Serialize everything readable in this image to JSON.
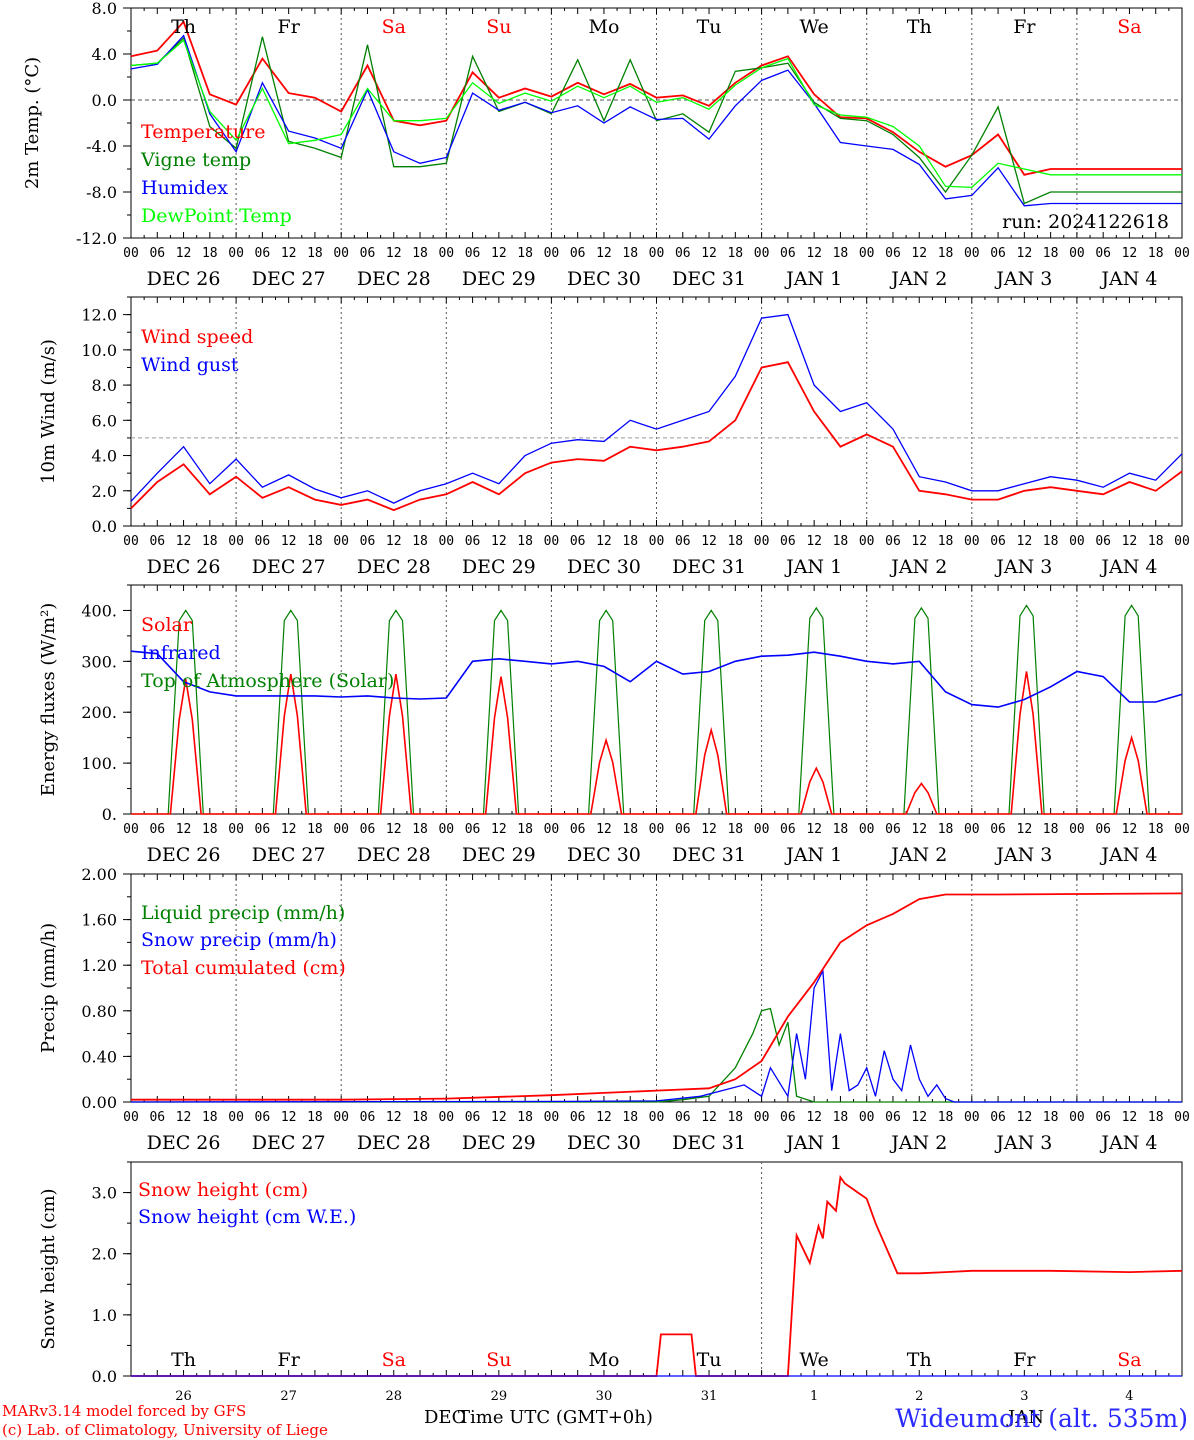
{
  "chart_data": [
    {
      "type": "line",
      "ylabel": "2m Temp. (°C)",
      "ylim": [
        -12,
        8
      ],
      "yticks": [
        "8.0",
        "4.0",
        "0.0",
        "-4.0",
        "-8.0",
        "-12.0"
      ],
      "reference_line": 0,
      "run": "run: 2024122618",
      "x": [
        0,
        6,
        12,
        18,
        24,
        30,
        36,
        42,
        48,
        54,
        60,
        66,
        72,
        78,
        84,
        90,
        96,
        102,
        108,
        114,
        120,
        126,
        132,
        138,
        144,
        150,
        156,
        162,
        168,
        174,
        180,
        186,
        192,
        198,
        204,
        210,
        216,
        222,
        228,
        234,
        240
      ],
      "series": [
        {
          "name": "Temperature",
          "color": "#ff0000",
          "values": [
            3.8,
            4.3,
            6.8,
            0.5,
            -0.4,
            3.6,
            0.6,
            0.2,
            -1.0,
            3.0,
            -1.8,
            -2.2,
            -1.8,
            2.4,
            0.2,
            1.0,
            0.3,
            1.5,
            0.5,
            1.4,
            0.2,
            0.4,
            -0.5,
            1.5,
            3.0,
            3.8,
            0.5,
            -1.5,
            -1.6,
            -2.8,
            -4.5,
            -5.8,
            -4.8,
            -3.0,
            -6.5,
            -6.0,
            -6.0,
            -6.0,
            -6.0,
            -6.0,
            -6.0
          ]
        },
        {
          "name": "Vigne temp",
          "color": "#008000",
          "values": [
            3.0,
            3.2,
            5.4,
            -2.3,
            -4.2,
            5.5,
            -3.6,
            -4.2,
            -5.0,
            4.8,
            -5.8,
            -5.8,
            -5.5,
            3.8,
            -1.0,
            -0.2,
            -1.2,
            3.5,
            -1.8,
            3.5,
            -1.8,
            -1.2,
            -2.8,
            2.5,
            2.8,
            3.2,
            -0.2,
            -1.6,
            -1.8,
            -3.0,
            -5.0,
            -8.0,
            -4.8,
            -0.6,
            -9.0,
            -8.0,
            -8.0,
            -8.0,
            -8.0,
            -8.0,
            -8.0
          ]
        },
        {
          "name": "Humidex",
          "color": "#0000ff",
          "values": [
            2.7,
            3.1,
            5.6,
            -1.2,
            -4.5,
            1.5,
            -2.7,
            -3.3,
            -4.2,
            0.9,
            -4.5,
            -5.5,
            -5.0,
            0.6,
            -0.9,
            -0.2,
            -1.1,
            -0.5,
            -2.0,
            -0.6,
            -1.7,
            -1.6,
            -3.4,
            -0.5,
            1.7,
            2.6,
            -0.3,
            -3.7,
            -4.0,
            -4.3,
            -5.6,
            -8.6,
            -8.3,
            -5.9,
            -9.2,
            -9.0,
            -9.0,
            -9.0,
            -9.0,
            -9.0,
            -9.0
          ]
        },
        {
          "name": "DewPoint Temp",
          "color": "#00ff00",
          "values": [
            3.0,
            3.2,
            5.2,
            -1.0,
            -3.5,
            1.0,
            -3.8,
            -3.5,
            -3.0,
            1.0,
            -1.8,
            -1.8,
            -1.6,
            1.5,
            -0.3,
            0.6,
            -0.1,
            1.2,
            0.2,
            1.2,
            -0.2,
            0.2,
            -0.8,
            1.3,
            2.8,
            3.6,
            -0.4,
            -1.3,
            -1.5,
            -2.3,
            -4.0,
            -7.5,
            -7.6,
            -5.5,
            -6.0,
            -6.5,
            -6.5,
            -6.5,
            -6.5,
            -6.5,
            -6.5
          ]
        }
      ]
    },
    {
      "type": "line",
      "ylabel": "10m Wind (m/s)",
      "ylim": [
        0,
        13
      ],
      "yticks": [
        "12.0",
        "10.0",
        "8.0",
        "6.0",
        "4.0",
        "2.0",
        "0.0"
      ],
      "reference_line": 5,
      "x": [
        0,
        6,
        12,
        18,
        24,
        30,
        36,
        42,
        48,
        54,
        60,
        66,
        72,
        78,
        84,
        90,
        96,
        102,
        108,
        114,
        120,
        126,
        132,
        138,
        144,
        150,
        156,
        162,
        168,
        174,
        180,
        186,
        192,
        198,
        204,
        210,
        216,
        222,
        228,
        234,
        240
      ],
      "series": [
        {
          "name": "Wind speed",
          "color": "#ff0000",
          "values": [
            1.0,
            2.5,
            3.5,
            1.8,
            2.8,
            1.6,
            2.2,
            1.5,
            1.2,
            1.5,
            0.9,
            1.5,
            1.8,
            2.5,
            1.8,
            3.0,
            3.6,
            3.8,
            3.7,
            4.5,
            4.3,
            4.5,
            4.8,
            6.0,
            9.0,
            9.3,
            6.5,
            4.5,
            5.2,
            4.5,
            2.0,
            1.8,
            1.5,
            1.5,
            2.0,
            2.2,
            2.0,
            1.8,
            2.5,
            2.0,
            3.1
          ]
        },
        {
          "name": "Wind gust",
          "color": "#0000ff",
          "values": [
            1.4,
            3.0,
            4.5,
            2.4,
            3.8,
            2.2,
            2.9,
            2.1,
            1.6,
            2.0,
            1.3,
            2.0,
            2.4,
            3.0,
            2.4,
            4.0,
            4.7,
            4.9,
            4.8,
            6.0,
            5.5,
            6.0,
            6.5,
            8.5,
            11.8,
            12.0,
            8.0,
            6.5,
            7.0,
            5.5,
            2.8,
            2.5,
            2.0,
            2.0,
            2.4,
            2.8,
            2.6,
            2.2,
            3.0,
            2.6,
            4.1
          ]
        }
      ]
    },
    {
      "type": "line",
      "ylabel": "Energy fluxes (W/m²)",
      "ylim": [
        0,
        450
      ],
      "yticks": [
        "400.",
        "300.",
        "200.",
        "100.",
        "0."
      ],
      "diurnal": {
        "toa_peak": [
          400,
          400,
          400,
          400,
          400,
          400,
          405,
          405,
          410,
          410
        ],
        "solar_peak": [
          265,
          275,
          275,
          270,
          145,
          165,
          90,
          60,
          280,
          150
        ]
      },
      "series": [
        {
          "name": "Solar",
          "color": "#ff0000"
        },
        {
          "name": "Infrared",
          "color": "#0000ff",
          "x": [
            0,
            6,
            12,
            18,
            24,
            30,
            36,
            42,
            48,
            54,
            60,
            66,
            72,
            78,
            84,
            90,
            96,
            102,
            108,
            114,
            120,
            126,
            132,
            138,
            144,
            150,
            156,
            162,
            168,
            174,
            180,
            186,
            192,
            198,
            204,
            210,
            216,
            222,
            228,
            234,
            240
          ],
          "values": [
            320,
            315,
            260,
            240,
            232,
            232,
            232,
            232,
            230,
            232,
            228,
            226,
            228,
            300,
            305,
            300,
            295,
            300,
            290,
            260,
            300,
            275,
            280,
            300,
            310,
            312,
            318,
            310,
            300,
            295,
            300,
            240,
            215,
            210,
            225,
            250,
            280,
            270,
            220,
            220,
            235
          ]
        },
        {
          "name": "Top of Atmosphere (Solar)",
          "color": "#008000"
        }
      ]
    },
    {
      "type": "line",
      "ylabel": "Precip (mm/h)",
      "ylim": [
        0,
        2
      ],
      "yticks": [
        "2.00",
        "1.60",
        "1.20",
        "0.80",
        "0.40",
        "0.00"
      ],
      "series": [
        {
          "name": "Liquid precip (mm/h)",
          "color": "#008000",
          "x": [
            0,
            120,
            126,
            132,
            138,
            142,
            144,
            146,
            148,
            150,
            152,
            156,
            240
          ],
          "values": [
            0,
            0,
            0.02,
            0.05,
            0.3,
            0.6,
            0.8,
            0.82,
            0.5,
            0.7,
            0.05,
            0,
            0
          ]
        },
        {
          "name": "Snow precip (mm/h)",
          "color": "#0000ff",
          "x": [
            0,
            100,
            120,
            130,
            140,
            144,
            146,
            150,
            152,
            154,
            156,
            158,
            160,
            162,
            164,
            166,
            168,
            170,
            172,
            174,
            176,
            178,
            180,
            182,
            184,
            186,
            188,
            240
          ],
          "values": [
            0,
            0.005,
            0.01,
            0.05,
            0.15,
            0.05,
            0.3,
            0.05,
            0.6,
            0.2,
            1.0,
            1.15,
            0.1,
            0.6,
            0.1,
            0.15,
            0.3,
            0.05,
            0.45,
            0.2,
            0.1,
            0.5,
            0.2,
            0.05,
            0.15,
            0.03,
            0.0,
            0
          ]
        },
        {
          "name": "Total cumulated (cm)",
          "color": "#ff0000",
          "x": [
            0,
            48,
            72,
            96,
            108,
            120,
            132,
            138,
            144,
            150,
            156,
            162,
            168,
            174,
            180,
            186,
            198,
            240
          ],
          "values": [
            0.02,
            0.02,
            0.03,
            0.06,
            0.08,
            0.1,
            0.12,
            0.2,
            0.36,
            0.75,
            1.05,
            1.4,
            1.55,
            1.65,
            1.78,
            1.82,
            1.82,
            1.83
          ]
        }
      ]
    },
    {
      "type": "line",
      "ylabel": "Snow height (cm)",
      "ylim": [
        0,
        3.5
      ],
      "yticks": [
        "3.0",
        "2.0",
        "1.0",
        "0.0"
      ],
      "series": [
        {
          "name": "Snow height (cm)",
          "color": "#ff0000",
          "x": [
            0,
            120,
            121,
            128,
            129,
            136,
            150,
            152,
            155,
            157,
            158,
            159,
            161,
            162,
            163,
            164,
            165,
            166,
            167,
            168,
            170,
            175,
            180,
            186,
            192,
            210,
            228,
            240
          ],
          "values": [
            0,
            0,
            0.68,
            0.68,
            0,
            0,
            0,
            2.3,
            1.85,
            2.45,
            2.25,
            2.85,
            2.7,
            3.25,
            3.15,
            3.1,
            3.05,
            3.0,
            2.95,
            2.9,
            2.5,
            1.68,
            1.68,
            1.7,
            1.72,
            1.72,
            1.7,
            1.72
          ]
        },
        {
          "name": "Snow height (cm W.E.)",
          "color": "#0000ff",
          "x": [
            0,
            240
          ],
          "values": [
            0,
            0
          ]
        }
      ]
    }
  ],
  "days_top": [
    {
      "label": "Th",
      "color": "#000000"
    },
    {
      "label": "Fr",
      "color": "#000000"
    },
    {
      "label": "Sa",
      "color": "#ff0000"
    },
    {
      "label": "Su",
      "color": "#ff0000"
    },
    {
      "label": "Mo",
      "color": "#000000"
    },
    {
      "label": "Tu",
      "color": "#000000"
    },
    {
      "label": "We",
      "color": "#000000"
    },
    {
      "label": "Th",
      "color": "#000000"
    },
    {
      "label": "Fr",
      "color": "#000000"
    },
    {
      "label": "Sa",
      "color": "#ff0000"
    }
  ],
  "date_labels": [
    "DEC 26",
    "DEC 27",
    "DEC 28",
    "DEC 29",
    "DEC 30",
    "DEC 31",
    "JAN  1",
    "JAN  2",
    "JAN  3",
    "JAN  4"
  ],
  "hour_labels": [
    "00",
    "06",
    "12",
    "18"
  ],
  "bottom_day_numbers": [
    "26",
    "27",
    "28",
    "29",
    "30",
    "31",
    "1",
    "2",
    "3",
    "4"
  ],
  "footer": {
    "credit_line1": "MARv3.14 model forced by GFS",
    "credit_line2": "(c) Lab. of Climatology, University of Liege",
    "month_left": "DEC",
    "xlabel": "Time UTC (GMT+0h)",
    "month_right": "JAN",
    "station": "Wideumont (alt. 535m)"
  }
}
